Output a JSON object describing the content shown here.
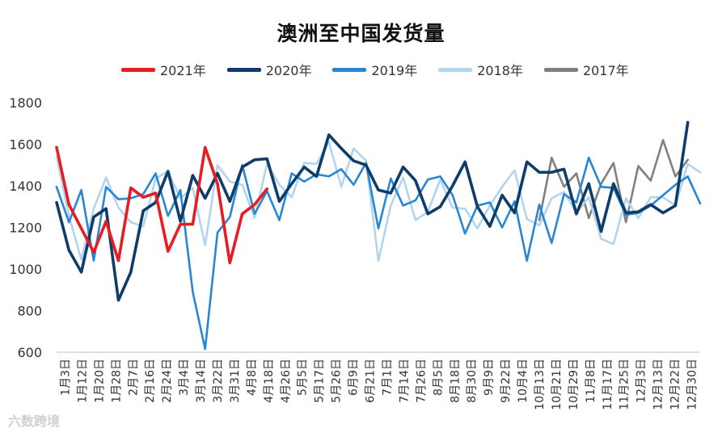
{
  "chart_data": {
    "type": "line",
    "title": "澳洲至中国发货量",
    "xlabel": "",
    "ylabel": "",
    "ylim": [
      600,
      1800
    ],
    "yticks": [
      600,
      800,
      1000,
      1200,
      1400,
      1600,
      1800
    ],
    "grid": false,
    "legend_position": "top",
    "categories": [
      "1月3日",
      "1月12日",
      "1月20日",
      "1月28日",
      "2月7日",
      "2月16日",
      "2月24日",
      "3月4日",
      "3月14日",
      "3月22日",
      "3月31日",
      "4月8日",
      "4月18日",
      "4月26日",
      "5月5日",
      "5月17日",
      "5月26日",
      "6月9日",
      "6月21日",
      "7月1日",
      "7月14日",
      "7月26日",
      "8月5日",
      "8月18日",
      "8月30日",
      "9月9日",
      "9月22日",
      "10月4日",
      "10月13日",
      "10月21日",
      "10月29日",
      "11月8日",
      "11月17日",
      "11月25日",
      "12月3日",
      "12月13日",
      "12月22日",
      "12月30日"
    ],
    "series": [
      {
        "name": "2021年",
        "color": "#e81c24",
        "points": [
          [
            0,
            1585
          ],
          [
            1,
            1310
          ],
          [
            2,
            1195
          ],
          [
            3,
            1080
          ],
          [
            4,
            1230
          ],
          [
            5,
            1040
          ],
          [
            6,
            1390
          ],
          [
            7,
            1345
          ],
          [
            8,
            1365
          ],
          [
            9,
            1085
          ],
          [
            10,
            1215
          ],
          [
            11,
            1215
          ],
          [
            12,
            1585
          ],
          [
            13,
            1410
          ],
          [
            14,
            1030
          ],
          [
            15,
            1265
          ],
          [
            16,
            1310
          ],
          [
            17,
            1385
          ]
        ]
      },
      {
        "name": "2020年",
        "color": "#0e3d6b",
        "points": [
          [
            0,
            1320
          ],
          [
            1,
            1090
          ],
          [
            2,
            985
          ],
          [
            3,
            1250
          ],
          [
            4,
            1290
          ],
          [
            5,
            850
          ],
          [
            6,
            985
          ],
          [
            7,
            1280
          ],
          [
            8,
            1320
          ],
          [
            9,
            1470
          ],
          [
            10,
            1230
          ],
          [
            11,
            1450
          ],
          [
            12,
            1340
          ],
          [
            13,
            1460
          ],
          [
            14,
            1325
          ],
          [
            15,
            1490
          ],
          [
            16,
            1525
          ],
          [
            17,
            1530
          ],
          [
            18,
            1325
          ],
          [
            19,
            1410
          ],
          [
            20,
            1490
          ],
          [
            21,
            1445
          ],
          [
            22,
            1645
          ],
          [
            23,
            1580
          ],
          [
            24,
            1520
          ],
          [
            25,
            1500
          ],
          [
            26,
            1380
          ],
          [
            27,
            1365
          ],
          [
            28,
            1490
          ],
          [
            29,
            1425
          ],
          [
            30,
            1265
          ],
          [
            31,
            1300
          ],
          [
            32,
            1400
          ],
          [
            33,
            1515
          ],
          [
            34,
            1300
          ],
          [
            35,
            1205
          ],
          [
            36,
            1355
          ],
          [
            37,
            1270
          ],
          [
            38,
            1515
          ],
          [
            39,
            1465
          ],
          [
            40,
            1465
          ],
          [
            41,
            1480
          ],
          [
            42,
            1265
          ],
          [
            43,
            1410
          ],
          [
            44,
            1180
          ],
          [
            45,
            1410
          ],
          [
            46,
            1270
          ],
          [
            47,
            1275
          ],
          [
            48,
            1310
          ],
          [
            49,
            1270
          ],
          [
            50,
            1305
          ],
          [
            51,
            1705
          ]
        ]
      },
      {
        "name": "2019年",
        "color": "#2787d4",
        "points": [
          [
            0,
            1395
          ],
          [
            1,
            1225
          ],
          [
            2,
            1380
          ],
          [
            3,
            1040
          ],
          [
            4,
            1395
          ],
          [
            5,
            1335
          ],
          [
            6,
            1340
          ],
          [
            7,
            1360
          ],
          [
            8,
            1460
          ],
          [
            9,
            1255
          ],
          [
            10,
            1380
          ],
          [
            11,
            890
          ],
          [
            12,
            615
          ],
          [
            13,
            1175
          ],
          [
            14,
            1250
          ],
          [
            15,
            1500
          ],
          [
            16,
            1265
          ],
          [
            17,
            1375
          ],
          [
            18,
            1235
          ],
          [
            19,
            1460
          ],
          [
            20,
            1420
          ],
          [
            21,
            1455
          ],
          [
            22,
            1445
          ],
          [
            23,
            1480
          ],
          [
            24,
            1405
          ],
          [
            25,
            1510
          ],
          [
            26,
            1195
          ],
          [
            27,
            1435
          ],
          [
            28,
            1305
          ],
          [
            29,
            1330
          ],
          [
            30,
            1430
          ],
          [
            31,
            1445
          ],
          [
            32,
            1355
          ],
          [
            33,
            1170
          ],
          [
            34,
            1305
          ],
          [
            35,
            1320
          ],
          [
            36,
            1200
          ],
          [
            37,
            1325
          ],
          [
            38,
            1040
          ],
          [
            39,
            1310
          ],
          [
            40,
            1125
          ],
          [
            41,
            1360
          ],
          [
            42,
            1320
          ],
          [
            43,
            1535
          ],
          [
            44,
            1395
          ],
          [
            45,
            1390
          ],
          [
            46,
            1260
          ],
          [
            47,
            1270
          ],
          [
            48,
            1305
          ],
          [
            49,
            1355
          ],
          [
            50,
            1405
          ],
          [
            51,
            1445
          ],
          [
            52,
            1315
          ]
        ]
      },
      {
        "name": "2018年",
        "color": "#b3d4ee",
        "points": [
          [
            0,
            1540
          ],
          [
            1,
            1255
          ],
          [
            2,
            1045
          ],
          [
            3,
            1290
          ],
          [
            4,
            1440
          ],
          [
            5,
            1295
          ],
          [
            6,
            1225
          ],
          [
            7,
            1205
          ],
          [
            8,
            1435
          ],
          [
            9,
            1470
          ],
          [
            10,
            1340
          ],
          [
            11,
            1390
          ],
          [
            12,
            1115
          ],
          [
            13,
            1500
          ],
          [
            14,
            1420
          ],
          [
            15,
            1405
          ],
          [
            16,
            1245
          ],
          [
            17,
            1505
          ],
          [
            18,
            1405
          ],
          [
            19,
            1345
          ],
          [
            20,
            1510
          ],
          [
            21,
            1505
          ],
          [
            22,
            1610
          ],
          [
            23,
            1395
          ],
          [
            24,
            1580
          ],
          [
            25,
            1520
          ],
          [
            26,
            1040
          ],
          [
            27,
            1305
          ],
          [
            28,
            1440
          ],
          [
            29,
            1235
          ],
          [
            30,
            1275
          ],
          [
            31,
            1430
          ],
          [
            32,
            1295
          ],
          [
            33,
            1290
          ],
          [
            34,
            1195
          ],
          [
            35,
            1305
          ],
          [
            36,
            1395
          ],
          [
            37,
            1475
          ],
          [
            38,
            1240
          ],
          [
            39,
            1210
          ],
          [
            40,
            1340
          ],
          [
            41,
            1370
          ],
          [
            42,
            1270
          ],
          [
            43,
            1345
          ],
          [
            44,
            1145
          ],
          [
            45,
            1120
          ],
          [
            46,
            1340
          ],
          [
            47,
            1245
          ],
          [
            48,
            1345
          ],
          [
            49,
            1345
          ],
          [
            50,
            1305
          ],
          [
            51,
            1505
          ],
          [
            52,
            1465
          ]
        ]
      },
      {
        "name": "2017年",
        "color": "#808080",
        "points": [
          [
            39,
            1235
          ],
          [
            40,
            1535
          ],
          [
            41,
            1395
          ],
          [
            42,
            1460
          ],
          [
            43,
            1245
          ],
          [
            44,
            1410
          ],
          [
            45,
            1510
          ],
          [
            46,
            1225
          ],
          [
            47,
            1495
          ],
          [
            48,
            1425
          ],
          [
            49,
            1620
          ],
          [
            50,
            1445
          ],
          [
            51,
            1525
          ]
        ]
      }
    ]
  },
  "watermark": "六数跨境"
}
